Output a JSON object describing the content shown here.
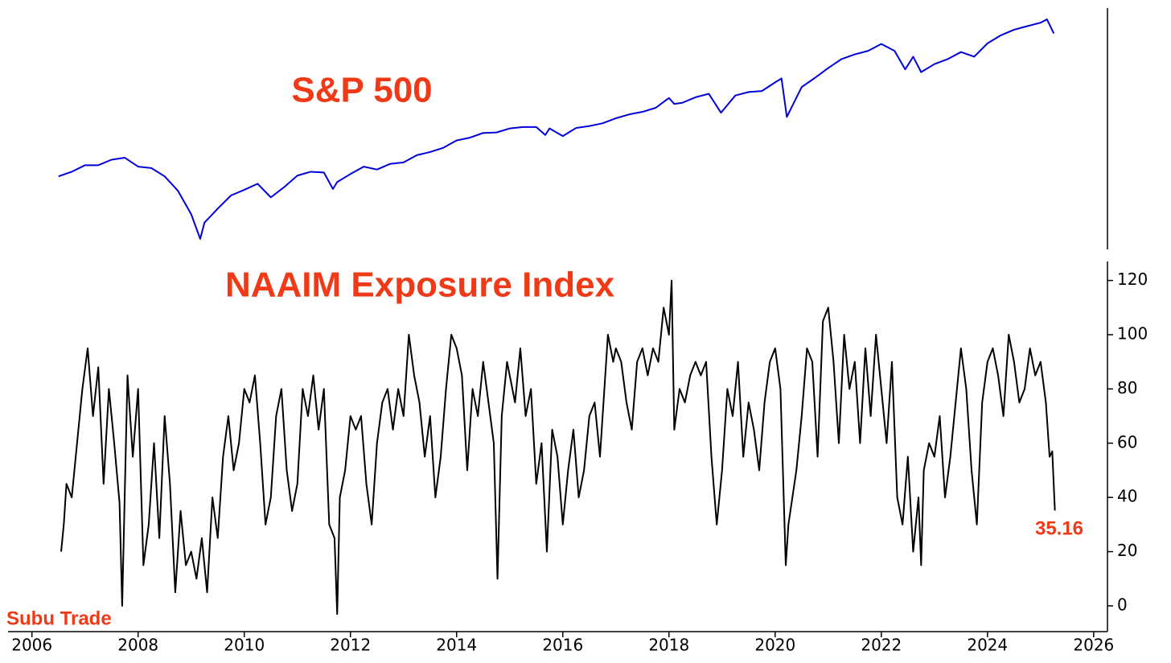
{
  "chart_data": [
    {
      "type": "line",
      "title": "S&P 500",
      "log_scale": true,
      "xlim": [
        2005.55,
        2026.26
      ],
      "ylim": [
        612,
        6830
      ],
      "series": [
        {
          "color": "#0000dd",
          "x": [
            2006.5,
            2006.75,
            2007,
            2007.25,
            2007.5,
            2007.75,
            2008,
            2008.25,
            2008.5,
            2008.75,
            2009,
            2009.17,
            2009.25,
            2009.5,
            2009.75,
            2010,
            2010.25,
            2010.5,
            2010.75,
            2011,
            2011.25,
            2011.5,
            2011.67,
            2011.75,
            2012,
            2012.25,
            2012.5,
            2012.75,
            2013,
            2013.25,
            2013.5,
            2013.75,
            2014,
            2014.25,
            2014.5,
            2014.75,
            2015,
            2015.25,
            2015.5,
            2015.67,
            2015.75,
            2016,
            2016.25,
            2016.5,
            2016.75,
            2017,
            2017.25,
            2017.5,
            2017.75,
            2018,
            2018.1,
            2018.25,
            2018.5,
            2018.75,
            2018.98,
            2019.25,
            2019.5,
            2019.75,
            2020,
            2020.12,
            2020.22,
            2020.5,
            2020.75,
            2021,
            2021.25,
            2021.5,
            2021.75,
            2022,
            2022.25,
            2022.45,
            2022.6,
            2022.75,
            2023,
            2023.25,
            2023.5,
            2023.75,
            2024,
            2024.25,
            2024.5,
            2024.75,
            2025,
            2025.12,
            2025.25
          ],
          "values": [
            1270,
            1330,
            1420,
            1420,
            1500,
            1530,
            1400,
            1380,
            1270,
            1100,
            870,
            680,
            800,
            920,
            1050,
            1110,
            1180,
            1030,
            1140,
            1280,
            1330,
            1320,
            1120,
            1200,
            1300,
            1400,
            1360,
            1440,
            1460,
            1570,
            1620,
            1690,
            1820,
            1870,
            1960,
            1970,
            2050,
            2080,
            2080,
            1920,
            2050,
            1900,
            2060,
            2100,
            2160,
            2270,
            2360,
            2420,
            2520,
            2780,
            2620,
            2650,
            2800,
            2900,
            2400,
            2850,
            2950,
            2980,
            3250,
            3380,
            2300,
            3100,
            3400,
            3750,
            4100,
            4300,
            4450,
            4770,
            4450,
            3700,
            4200,
            3600,
            3900,
            4100,
            4400,
            4200,
            4800,
            5200,
            5500,
            5700,
            5900,
            6100,
            5300
          ]
        }
      ]
    },
    {
      "type": "line",
      "title": "NAAIM Exposure Index",
      "xlim": [
        2005.55,
        2026.26
      ],
      "ylim": [
        -9.5,
        127
      ],
      "xticks": [
        2006,
        2008,
        2010,
        2012,
        2014,
        2016,
        2018,
        2020,
        2022,
        2024,
        2026
      ],
      "yticks": [
        0,
        20,
        40,
        60,
        80,
        100,
        120
      ],
      "annotations": [
        "35.16"
      ],
      "credit": "Subu Trade",
      "series": [
        {
          "color": "#000000",
          "x": [
            2006.55,
            2006.6,
            2006.65,
            2006.75,
            2006.85,
            2006.95,
            2007.05,
            2007.15,
            2007.25,
            2007.35,
            2007.45,
            2007.55,
            2007.65,
            2007.7,
            2007.8,
            2007.9,
            2008.0,
            2008.1,
            2008.2,
            2008.3,
            2008.4,
            2008.5,
            2008.6,
            2008.7,
            2008.8,
            2008.9,
            2009.0,
            2009.1,
            2009.2,
            2009.3,
            2009.4,
            2009.5,
            2009.6,
            2009.7,
            2009.8,
            2009.9,
            2010.0,
            2010.1,
            2010.2,
            2010.3,
            2010.4,
            2010.5,
            2010.6,
            2010.7,
            2010.8,
            2010.9,
            2011.0,
            2011.1,
            2011.2,
            2011.3,
            2011.4,
            2011.5,
            2011.6,
            2011.7,
            2011.75,
            2011.8,
            2011.9,
            2012.0,
            2012.1,
            2012.2,
            2012.3,
            2012.4,
            2012.5,
            2012.6,
            2012.7,
            2012.8,
            2012.9,
            2013.0,
            2013.1,
            2013.2,
            2013.3,
            2013.4,
            2013.5,
            2013.6,
            2013.7,
            2013.8,
            2013.9,
            2014.0,
            2014.1,
            2014.2,
            2014.3,
            2014.4,
            2014.5,
            2014.6,
            2014.7,
            2014.77,
            2014.85,
            2014.95,
            2015.0,
            2015.1,
            2015.2,
            2015.3,
            2015.4,
            2015.5,
            2015.6,
            2015.7,
            2015.8,
            2015.9,
            2016.0,
            2016.1,
            2016.2,
            2016.3,
            2016.4,
            2016.5,
            2016.6,
            2016.7,
            2016.85,
            2016.95,
            2017.0,
            2017.1,
            2017.2,
            2017.3,
            2017.4,
            2017.5,
            2017.6,
            2017.7,
            2017.8,
            2017.9,
            2018.0,
            2018.05,
            2018.1,
            2018.2,
            2018.3,
            2018.4,
            2018.5,
            2018.6,
            2018.7,
            2018.8,
            2018.9,
            2019.0,
            2019.1,
            2019.2,
            2019.3,
            2019.4,
            2019.5,
            2019.6,
            2019.7,
            2019.8,
            2019.9,
            2020.0,
            2020.1,
            2020.2,
            2020.25,
            2020.4,
            2020.5,
            2020.6,
            2020.7,
            2020.8,
            2020.9,
            2021.0,
            2021.1,
            2021.2,
            2021.3,
            2021.4,
            2021.5,
            2021.6,
            2021.7,
            2021.8,
            2021.9,
            2022.0,
            2022.1,
            2022.2,
            2022.3,
            2022.4,
            2022.5,
            2022.6,
            2022.7,
            2022.75,
            2022.8,
            2022.9,
            2023.0,
            2023.1,
            2023.2,
            2023.3,
            2023.4,
            2023.5,
            2023.6,
            2023.7,
            2023.8,
            2023.9,
            2024.0,
            2024.1,
            2024.2,
            2024.3,
            2024.4,
            2024.5,
            2024.6,
            2024.7,
            2024.8,
            2024.9,
            2025.0,
            2025.1,
            2025.17,
            2025.22,
            2025.27
          ],
          "values": [
            20,
            30,
            45,
            40,
            60,
            80,
            95,
            70,
            88,
            45,
            80,
            60,
            38,
            0,
            85,
            55,
            80,
            15,
            30,
            60,
            25,
            70,
            45,
            5,
            35,
            15,
            20,
            10,
            25,
            5,
            40,
            25,
            55,
            70,
            50,
            60,
            80,
            75,
            85,
            60,
            30,
            40,
            70,
            80,
            50,
            35,
            45,
            80,
            70,
            85,
            65,
            80,
            30,
            25,
            -3,
            40,
            50,
            70,
            65,
            70,
            45,
            30,
            60,
            75,
            80,
            65,
            80,
            70,
            100,
            85,
            75,
            55,
            70,
            40,
            55,
            80,
            100,
            95,
            85,
            50,
            80,
            70,
            90,
            75,
            60,
            10,
            70,
            90,
            85,
            75,
            95,
            70,
            80,
            45,
            60,
            20,
            65,
            55,
            30,
            50,
            65,
            40,
            50,
            70,
            75,
            55,
            100,
            90,
            95,
            90,
            75,
            65,
            90,
            95,
            85,
            95,
            90,
            110,
            100,
            120,
            65,
            80,
            75,
            85,
            90,
            85,
            90,
            55,
            30,
            50,
            80,
            70,
            90,
            55,
            75,
            65,
            50,
            75,
            90,
            95,
            80,
            15,
            30,
            50,
            70,
            95,
            90,
            55,
            105,
            110,
            90,
            60,
            100,
            80,
            90,
            60,
            95,
            70,
            100,
            80,
            60,
            90,
            40,
            30,
            55,
            20,
            40,
            15,
            50,
            60,
            55,
            70,
            40,
            55,
            75,
            95,
            80,
            50,
            30,
            75,
            90,
            95,
            85,
            70,
            100,
            90,
            75,
            80,
            95,
            85,
            90,
            75,
            55,
            57,
            35.16
          ]
        }
      ]
    }
  ]
}
